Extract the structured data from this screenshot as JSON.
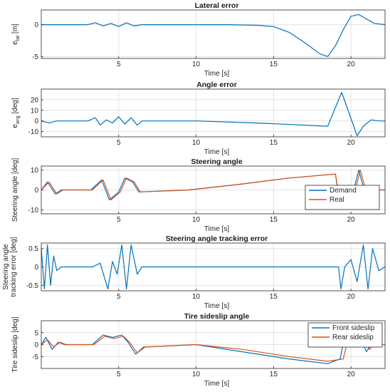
{
  "chart_data": [
    {
      "type": "line",
      "title": "Lateral error",
      "xlabel": "Time [s]",
      "ylabel": "e_lat [m]",
      "ylabel_main": "e",
      "ylabel_sub": "lat",
      "ylabel_unit": " [m]",
      "xlim": [
        0,
        22.2
      ],
      "ylim": [
        -5.3,
        2.3
      ],
      "xticks": [
        5,
        10,
        15,
        20
      ],
      "yticks": [
        -5,
        0
      ],
      "grid": true,
      "series": [
        {
          "color": "#0072BD",
          "x": [
            0,
            3,
            3.5,
            4,
            4.5,
            5,
            5.5,
            6,
            6.5,
            10,
            12,
            14,
            15,
            16,
            17,
            18,
            18.5,
            19,
            19.5,
            20,
            20.5,
            21,
            21.5,
            22.2
          ],
          "y": [
            0,
            0,
            0.3,
            -0.2,
            0.2,
            -0.3,
            0.3,
            -0.2,
            0,
            0,
            0,
            -0.1,
            -0.3,
            -1.2,
            -2.8,
            -4.6,
            -5.0,
            -3.3,
            -0.8,
            1.3,
            1.6,
            0.9,
            0.2,
            0
          ]
        }
      ]
    },
    {
      "type": "line",
      "title": "Angle error",
      "xlabel": "Time [s]",
      "ylabel": "e_ang [deg]",
      "ylabel_main": "e",
      "ylabel_sub": "ang",
      "ylabel_unit": " [deg]",
      "xlim": [
        0,
        22.2
      ],
      "ylim": [
        -15,
        30
      ],
      "xticks": [
        5,
        10,
        15,
        20
      ],
      "yticks": [
        -10,
        0,
        10,
        20
      ],
      "grid": true,
      "series": [
        {
          "color": "#0072BD",
          "x": [
            0,
            0.5,
            1,
            3,
            3.5,
            3.8,
            4.2,
            4.6,
            5,
            5.4,
            5.8,
            6.2,
            6.5,
            10,
            14,
            18.5,
            19.4,
            20.4,
            20.8,
            21.3,
            21.8,
            22.2
          ],
          "y": [
            0,
            -2,
            0,
            0,
            3,
            -4,
            1,
            -2,
            4,
            -3,
            3,
            -4,
            0,
            0,
            -2,
            -5,
            27,
            -14,
            -5,
            1,
            0,
            0
          ]
        }
      ]
    },
    {
      "type": "line",
      "title": "Steering angle",
      "xlabel": "Time [s]",
      "ylabel": "Steering angle [deg]",
      "xlim": [
        0,
        22.2
      ],
      "ylim": [
        -12,
        12
      ],
      "xticks": [
        5,
        10,
        15,
        20
      ],
      "yticks": [
        -10,
        0,
        10
      ],
      "grid": true,
      "legend": "bottom-right",
      "series": [
        {
          "name": "Demand",
          "color": "#0072BD",
          "x": [
            0,
            0.4,
            0.9,
            1.3,
            3.2,
            3.9,
            4.4,
            5.0,
            5.4,
            5.9,
            6.3,
            9.5,
            13,
            16,
            19.0,
            19.3,
            19.6,
            20.0,
            20.5,
            21.0,
            21.5,
            22.2
          ],
          "y": [
            0,
            4,
            -2,
            0,
            0,
            5,
            -5,
            -1,
            6,
            4,
            -1,
            0,
            3,
            6,
            8,
            -9,
            -9,
            -6,
            10,
            -4,
            0,
            0
          ]
        },
        {
          "name": "Real",
          "color": "#D95319",
          "x": [
            0,
            0.5,
            1.0,
            1.4,
            3.3,
            4.0,
            4.5,
            5.1,
            5.5,
            6.0,
            6.4,
            9.6,
            13,
            16,
            19.0,
            19.35,
            19.7,
            20.1,
            20.6,
            21.1,
            21.6,
            22.2
          ],
          "y": [
            0,
            4,
            -2,
            0,
            0,
            5,
            -5,
            -1,
            6,
            4,
            -1,
            0,
            3,
            6,
            8,
            -9,
            -9.5,
            -6,
            10,
            -4,
            0,
            0
          ]
        }
      ]
    },
    {
      "type": "line",
      "title": "Steering angle tracking error",
      "xlabel": "Time [s]",
      "ylabel": "Steering angle tracking error [deg]",
      "ylabel_line1": "Steering angle",
      "ylabel_line2": "tracking error [deg]",
      "xlim": [
        0,
        22.2
      ],
      "ylim": [
        -0.65,
        0.65
      ],
      "xticks": [
        5,
        10,
        15,
        20
      ],
      "yticks": [
        -0.5,
        0,
        0.5
      ],
      "grid": true,
      "series": [
        {
          "color": "#0072BD",
          "x": [
            0,
            0.2,
            0.4,
            0.6,
            0.8,
            1.0,
            1.3,
            3.3,
            3.8,
            4.3,
            4.6,
            4.9,
            5.2,
            5.5,
            5.8,
            6.2,
            6.5,
            10,
            19.2,
            19.35,
            19.6,
            20.0,
            20.4,
            20.8,
            21.1,
            21.4,
            21.8,
            22.2
          ],
          "y": [
            0.5,
            -0.6,
            0.6,
            -0.5,
            0.3,
            -0.1,
            0,
            0,
            0.1,
            -0.6,
            0.15,
            -0.2,
            0.6,
            -0.6,
            0.6,
            -0.2,
            0,
            0,
            0,
            -0.6,
            0,
            0.2,
            -0.4,
            0.6,
            -0.6,
            0.5,
            -0.1,
            0
          ]
        }
      ]
    },
    {
      "type": "line",
      "title": "Tire sideslip angle",
      "xlabel": "Time [s]",
      "ylabel": "Tire sideslip [deg]",
      "xlim": [
        0,
        22.2
      ],
      "ylim": [
        -10,
        10
      ],
      "xticks": [
        5,
        10,
        15,
        20
      ],
      "yticks": [
        -5,
        0,
        5
      ],
      "grid": true,
      "legend": "top-right",
      "series": [
        {
          "name": "Front sideslip",
          "color": "#0072BD",
          "x": [
            0,
            0.3,
            0.7,
            1.1,
            1.5,
            3.3,
            4.0,
            4.6,
            5.2,
            5.6,
            6.1,
            6.6,
            10,
            13,
            16,
            18.5,
            19.3,
            19.7,
            20.2,
            20.6,
            21.0,
            21.4,
            21.8,
            22.2
          ],
          "y": [
            0,
            3,
            -2,
            1,
            0,
            0,
            4,
            3,
            4,
            1,
            -4,
            -1,
            0,
            -3,
            -6,
            -8,
            -6,
            7,
            6,
            3,
            -3,
            1,
            0,
            0
          ]
        },
        {
          "name": "Rear sideslip",
          "color": "#D95319",
          "x": [
            0,
            0.4,
            0.8,
            1.2,
            1.6,
            3.4,
            4.1,
            4.7,
            5.3,
            5.7,
            6.2,
            6.7,
            10,
            13,
            16,
            18.5,
            19.5,
            19.9,
            20.4,
            20.8,
            21.2,
            21.6,
            22.0,
            22.2
          ],
          "y": [
            0,
            2,
            -1,
            1,
            0,
            0,
            3.5,
            2.5,
            3.5,
            1,
            -3.5,
            -1,
            0,
            -2,
            -5,
            -7,
            -6,
            5,
            8,
            2,
            -2,
            1,
            0,
            0
          ]
        }
      ]
    }
  ]
}
